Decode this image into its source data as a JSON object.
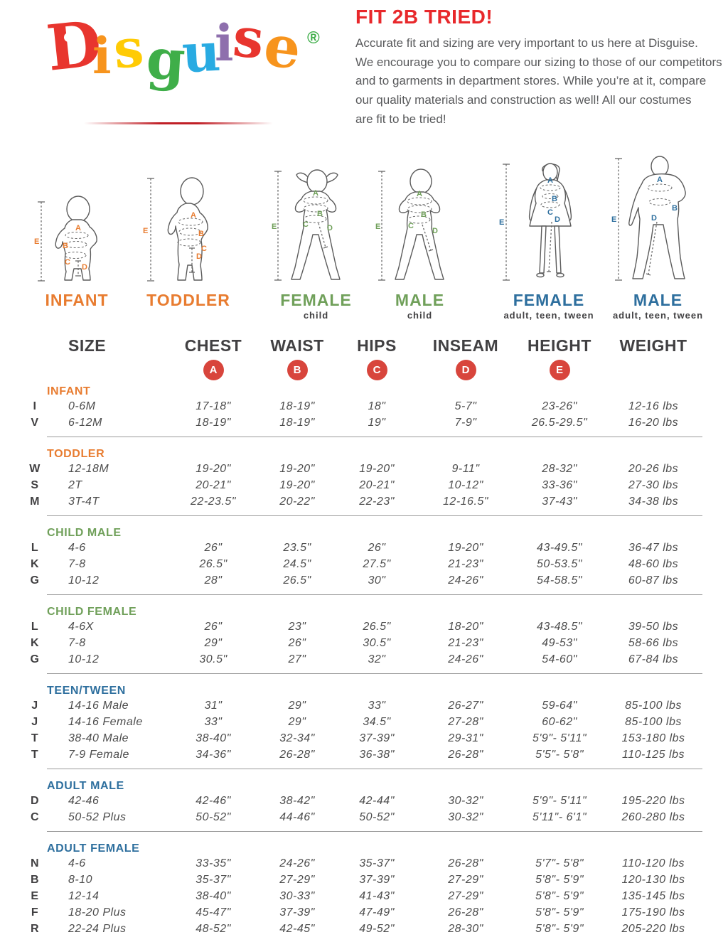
{
  "logo": {
    "letters": [
      {
        "ch": "D",
        "color": "#e8352e"
      },
      {
        "ch": "i",
        "color": "#f7941d"
      },
      {
        "ch": "s",
        "color": "#ffcb05"
      },
      {
        "ch": "g",
        "color": "#3fae49"
      },
      {
        "ch": "u",
        "color": "#29abe2"
      },
      {
        "ch": "i",
        "color": "#8e6fad"
      },
      {
        "ch": "s",
        "color": "#e8352e"
      },
      {
        "ch": "e",
        "color": "#f7941d"
      }
    ],
    "registered": "®"
  },
  "intro": {
    "title": "FIT 2B TRIED!",
    "lines": [
      "Accurate fit and sizing are very important to us here at Disguise.",
      "We encourage you to compare our sizing to those of our competitors",
      "and to garments in department stores. While you’re at it, compare",
      "our quality materials and construction as well! All our costumes",
      "are fit to be tried!"
    ]
  },
  "marks": {
    "A": "A",
    "B": "B",
    "C": "C",
    "D": "D",
    "E": "E"
  },
  "figures": [
    {
      "label": "INFANT",
      "sublabel": ""
    },
    {
      "label": "TODDLER",
      "sublabel": ""
    },
    {
      "label": "FEMALE",
      "sublabel": "child"
    },
    {
      "label": "MALE",
      "sublabel": "child"
    },
    {
      "label": "FEMALE",
      "sublabel": "adult, teen, tween"
    },
    {
      "label": "MALE",
      "sublabel": "adult, teen, tween"
    }
  ],
  "table": {
    "columns": [
      "SIZE",
      "CHEST",
      "WAIST",
      "HIPS",
      "INSEAM",
      "HEIGHT",
      "WEIGHT"
    ],
    "badges": [
      "A",
      "B",
      "C",
      "D",
      "E"
    ],
    "badge_color": "#d8453c",
    "sections": [
      {
        "name": "INFANT",
        "color": "orange",
        "rows": [
          {
            "letter": "I",
            "size": "0-6M",
            "chest": "17-18\"",
            "waist": "18-19\"",
            "hips": "18\"",
            "inseam": "5-7\"",
            "height": "23-26\"",
            "weight": "12-16 lbs"
          },
          {
            "letter": "V",
            "size": "6-12M",
            "chest": "18-19\"",
            "waist": "18-19\"",
            "hips": "19\"",
            "inseam": "7-9\"",
            "height": "26.5-29.5\"",
            "weight": "16-20 lbs"
          }
        ]
      },
      {
        "name": "TODDLER",
        "color": "orange",
        "rows": [
          {
            "letter": "W",
            "size": "12-18M",
            "chest": "19-20\"",
            "waist": "19-20\"",
            "hips": "19-20\"",
            "inseam": "9-11\"",
            "height": "28-32\"",
            "weight": "20-26 lbs"
          },
          {
            "letter": "S",
            "size": "2T",
            "chest": "20-21\"",
            "waist": "19-20\"",
            "hips": "20-21\"",
            "inseam": "10-12\"",
            "height": "33-36\"",
            "weight": "27-30 lbs"
          },
          {
            "letter": "M",
            "size": "3T-4T",
            "chest": "22-23.5\"",
            "waist": "20-22\"",
            "hips": "22-23\"",
            "inseam": "12-16.5\"",
            "height": "37-43\"",
            "weight": "34-38 lbs"
          }
        ]
      },
      {
        "name": "CHILD MALE",
        "color": "green",
        "rows": [
          {
            "letter": "L",
            "size": "4-6",
            "chest": "26\"",
            "waist": "23.5\"",
            "hips": "26\"",
            "inseam": "19-20\"",
            "height": "43-49.5\"",
            "weight": "36-47 lbs"
          },
          {
            "letter": "K",
            "size": "7-8",
            "chest": "26.5\"",
            "waist": "24.5\"",
            "hips": "27.5\"",
            "inseam": "21-23\"",
            "height": "50-53.5\"",
            "weight": "48-60 lbs"
          },
          {
            "letter": "G",
            "size": "10-12",
            "chest": "28\"",
            "waist": "26.5\"",
            "hips": "30\"",
            "inseam": "24-26\"",
            "height": "54-58.5\"",
            "weight": "60-87 lbs"
          }
        ]
      },
      {
        "name": "CHILD FEMALE",
        "color": "green",
        "rows": [
          {
            "letter": "L",
            "size": "4-6X",
            "chest": "26\"",
            "waist": "23\"",
            "hips": "26.5\"",
            "inseam": "18-20\"",
            "height": "43-48.5\"",
            "weight": "39-50 lbs"
          },
          {
            "letter": "K",
            "size": "7-8",
            "chest": "29\"",
            "waist": "26\"",
            "hips": "30.5\"",
            "inseam": "21-23\"",
            "height": "49-53\"",
            "weight": "58-66 lbs"
          },
          {
            "letter": "G",
            "size": "10-12",
            "chest": "30.5\"",
            "waist": "27\"",
            "hips": "32\"",
            "inseam": "24-26\"",
            "height": "54-60\"",
            "weight": "67-84 lbs"
          }
        ]
      },
      {
        "name": "TEEN/TWEEN",
        "color": "blue",
        "rows": [
          {
            "letter": "J",
            "size": "14-16 Male",
            "chest": "31\"",
            "waist": "29\"",
            "hips": "33\"",
            "inseam": "26-27\"",
            "height": "59-64\"",
            "weight": "85-100 lbs"
          },
          {
            "letter": "J",
            "size": "14-16 Female",
            "chest": "33\"",
            "waist": "29\"",
            "hips": "34.5\"",
            "inseam": "27-28\"",
            "height": "60-62\"",
            "weight": "85-100 lbs"
          },
          {
            "letter": "T",
            "size": "38-40 Male",
            "chest": "38-40\"",
            "waist": "32-34\"",
            "hips": "37-39\"",
            "inseam": "29-31\"",
            "height": "5'9\"- 5'11\"",
            "weight": "153-180 lbs"
          },
          {
            "letter": "T",
            "size": "7-9 Female",
            "chest": "34-36\"",
            "waist": "26-28\"",
            "hips": "36-38\"",
            "inseam": "26-28\"",
            "height": "5'5\"- 5'8\"",
            "weight": "110-125 lbs"
          }
        ]
      },
      {
        "name": "ADULT MALE",
        "color": "blue",
        "rows": [
          {
            "letter": "D",
            "size": "42-46",
            "chest": "42-46\"",
            "waist": "38-42\"",
            "hips": "42-44\"",
            "inseam": "30-32\"",
            "height": "5'9\"- 5'11\"",
            "weight": "195-220 lbs"
          },
          {
            "letter": "C",
            "size": "50-52 Plus",
            "chest": "50-52\"",
            "waist": "44-46\"",
            "hips": "50-52\"",
            "inseam": "30-32\"",
            "height": "5'11\"- 6'1\"",
            "weight": "260-280 lbs"
          }
        ]
      },
      {
        "name": "ADULT FEMALE",
        "color": "blue",
        "rows": [
          {
            "letter": "N",
            "size": "4-6",
            "chest": "33-35\"",
            "waist": "24-26\"",
            "hips": "35-37\"",
            "inseam": "26-28\"",
            "height": "5'7\"- 5'8\"",
            "weight": "110-120 lbs"
          },
          {
            "letter": "B",
            "size": "8-10",
            "chest": "35-37\"",
            "waist": "27-29\"",
            "hips": "37-39\"",
            "inseam": "27-29\"",
            "height": "5'8\"- 5'9\"",
            "weight": "120-130 lbs"
          },
          {
            "letter": "E",
            "size": "12-14",
            "chest": "38-40\"",
            "waist": "30-33\"",
            "hips": "41-43\"",
            "inseam": "27-29\"",
            "height": "5'8\"- 5'9\"",
            "weight": "135-145 lbs"
          },
          {
            "letter": "F",
            "size": "18-20 Plus",
            "chest": "45-47\"",
            "waist": "37-39\"",
            "hips": "47-49\"",
            "inseam": "26-28\"",
            "height": "5'8\"- 5'9\"",
            "weight": "175-190 lbs"
          },
          {
            "letter": "R",
            "size": "22-24 Plus",
            "chest": "48-52\"",
            "waist": "42-45\"",
            "hips": "49-52\"",
            "inseam": "28-30\"",
            "height": "5'8\"- 5'9\"",
            "weight": "205-220 lbs"
          }
        ]
      }
    ]
  }
}
